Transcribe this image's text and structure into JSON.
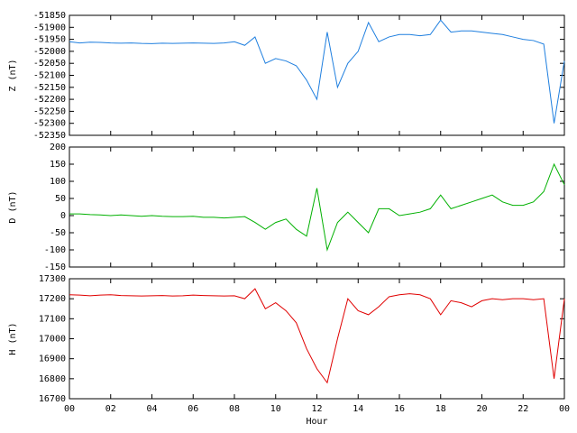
{
  "chart_data": [
    {
      "type": "line",
      "ylabel": "Z (nT)",
      "x": [
        0,
        0.5,
        1,
        1.5,
        2,
        2.5,
        3,
        3.5,
        4,
        4.5,
        5,
        5.5,
        6,
        6.5,
        7,
        7.5,
        8,
        8.5,
        9,
        9.5,
        10,
        10.5,
        11,
        11.5,
        12,
        12.5,
        13,
        13.5,
        14,
        14.5,
        15,
        15.5,
        16,
        16.5,
        17,
        17.5,
        18,
        18.5,
        19,
        19.5,
        20,
        20.5,
        21,
        21.5,
        22,
        22.5,
        23,
        23.5,
        24
      ],
      "series": [
        {
          "name": "Z",
          "color": "#1f7fdf",
          "values": [
            -51960,
            -51965,
            -51962,
            -51963,
            -51965,
            -51966,
            -51965,
            -51967,
            -51968,
            -51966,
            -51967,
            -51966,
            -51965,
            -51966,
            -51967,
            -51965,
            -51960,
            -51975,
            -51940,
            -52050,
            -52030,
            -52040,
            -52060,
            -52120,
            -52200,
            -51920,
            -52150,
            -52050,
            -52000,
            -51880,
            -51960,
            -51940,
            -51930,
            -51930,
            -51935,
            -51930,
            -51870,
            -51920,
            -51915,
            -51915,
            -51920,
            -51925,
            -51930,
            -51940,
            -51950,
            -51955,
            -51970,
            -52300,
            -52040
          ]
        }
      ],
      "xlim": [
        0,
        24
      ],
      "ylim": [
        -52350,
        -51850
      ],
      "yticks": [
        -52350,
        -52300,
        -52250,
        -52200,
        -52150,
        -52100,
        -52050,
        -52000,
        -51950,
        -51900,
        -51850
      ]
    },
    {
      "type": "line",
      "ylabel": "D (nT)",
      "x": [
        0,
        0.5,
        1,
        1.5,
        2,
        2.5,
        3,
        3.5,
        4,
        4.5,
        5,
        5.5,
        6,
        6.5,
        7,
        7.5,
        8,
        8.5,
        9,
        9.5,
        10,
        10.5,
        11,
        11.5,
        12,
        12.5,
        13,
        13.5,
        14,
        14.5,
        15,
        15.5,
        16,
        16.5,
        17,
        17.5,
        18,
        18.5,
        19,
        19.5,
        20,
        20.5,
        21,
        21.5,
        22,
        22.5,
        23,
        23.5,
        24
      ],
      "series": [
        {
          "name": "D",
          "color": "#00b000",
          "values": [
            5,
            5,
            3,
            2,
            0,
            2,
            0,
            -2,
            0,
            -2,
            -3,
            -3,
            -2,
            -5,
            -5,
            -7,
            -5,
            -3,
            -20,
            -40,
            -20,
            -10,
            -40,
            -60,
            80,
            -100,
            -20,
            10,
            -20,
            -50,
            20,
            20,
            0,
            5,
            10,
            20,
            60,
            20,
            30,
            40,
            50,
            60,
            40,
            30,
            30,
            40,
            70,
            150,
            90
          ]
        }
      ],
      "xlim": [
        0,
        24
      ],
      "ylim": [
        -150,
        200
      ],
      "yticks": [
        -150,
        -100,
        -50,
        0,
        50,
        100,
        150,
        200
      ]
    },
    {
      "type": "line",
      "ylabel": "H (nT)",
      "xlabel": "Hour",
      "x": [
        0,
        0.5,
        1,
        1.5,
        2,
        2.5,
        3,
        3.5,
        4,
        4.5,
        5,
        5.5,
        6,
        6.5,
        7,
        7.5,
        8,
        8.5,
        9,
        9.5,
        10,
        10.5,
        11,
        11.5,
        12,
        12.5,
        13,
        13.5,
        14,
        14.5,
        15,
        15.5,
        16,
        16.5,
        17,
        17.5,
        18,
        18.5,
        19,
        19.5,
        20,
        20.5,
        21,
        21.5,
        22,
        22.5,
        23,
        23.5,
        24
      ],
      "series": [
        {
          "name": "H",
          "color": "#e00000",
          "values": [
            17220,
            17218,
            17215,
            17218,
            17220,
            17216,
            17215,
            17214,
            17215,
            17216,
            17214,
            17215,
            17218,
            17216,
            17215,
            17214,
            17215,
            17200,
            17250,
            17150,
            17180,
            17140,
            17080,
            16950,
            16850,
            16780,
            17000,
            17200,
            17140,
            17120,
            17160,
            17210,
            17220,
            17225,
            17220,
            17200,
            17120,
            17190,
            17180,
            17160,
            17190,
            17200,
            17195,
            17200,
            17200,
            17195,
            17200,
            16800,
            17200
          ]
        }
      ],
      "xlim": [
        0,
        24
      ],
      "xticks": [
        {
          "value": 0,
          "label": "00"
        },
        {
          "value": 2,
          "label": "02"
        },
        {
          "value": 4,
          "label": "04"
        },
        {
          "value": 6,
          "label": "06"
        },
        {
          "value": 8,
          "label": "08"
        },
        10,
        12,
        14,
        16,
        18,
        20,
        22,
        {
          "value": 24,
          "label": "00"
        }
      ],
      "ylim": [
        16700,
        17300
      ],
      "yticks": [
        16700,
        16800,
        16900,
        17000,
        17100,
        17200,
        17300
      ]
    }
  ]
}
